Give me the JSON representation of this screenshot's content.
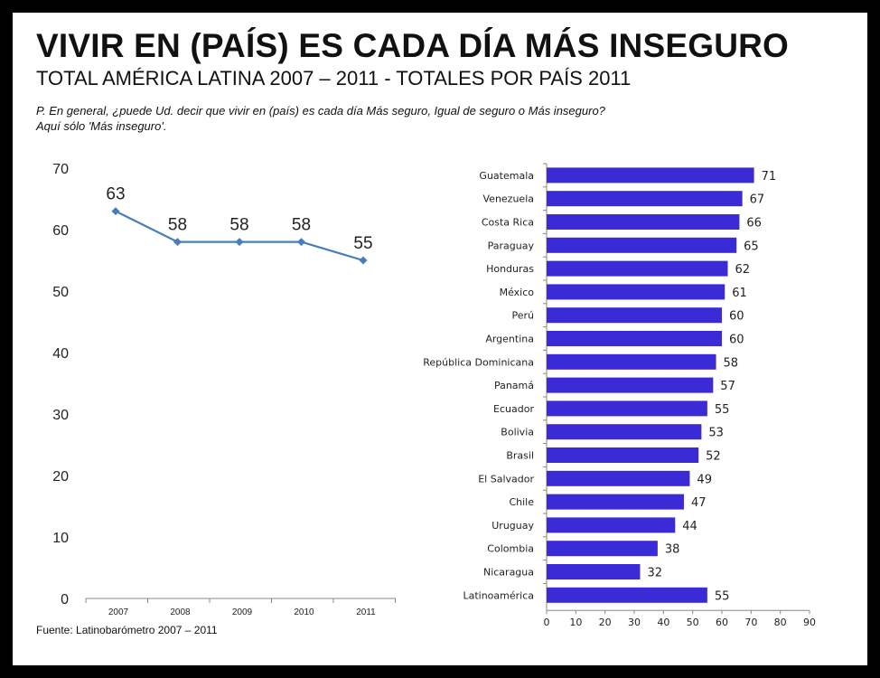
{
  "header": {
    "title": "VIVIR EN (PAÍS) ES CADA DÍA MÁS INSEGURO",
    "subtitle": "TOTAL AMÉRICA LATINA 2007 – 2011 - TOTALES POR PAÍS 2011",
    "question_line1": "P. En general, ¿puede Ud. decir que vivir en (país) es  cada día Más seguro, Igual de seguro o Más inseguro?",
    "question_line2": "Aquí sólo 'Más inseguro'."
  },
  "footer": {
    "source": "Fuente: Latinobarómetro 2007 – 2011"
  },
  "colors": {
    "line": "#4a7ebb",
    "bar": "#3a2bd6",
    "axis": "#888888"
  },
  "chart_data": [
    {
      "type": "line",
      "x": [
        "2007",
        "2008",
        "2009",
        "2010",
        "2011"
      ],
      "values": [
        63,
        58,
        58,
        58,
        55
      ],
      "ylim": [
        0,
        70
      ],
      "yticks": [
        0,
        10,
        20,
        30,
        40,
        50,
        60,
        70
      ],
      "data_labels": true,
      "grid": false
    },
    {
      "type": "bar",
      "orientation": "horizontal",
      "categories": [
        "Guatemala",
        "Venezuela",
        "Costa Rica",
        "Paraguay",
        "Honduras",
        "México",
        "Perú",
        "Argentina",
        "República Dominicana",
        "Panamá",
        "Ecuador",
        "Bolivia",
        "Brasil",
        "El Salvador",
        "Chile",
        "Uruguay",
        "Colombia",
        "Nicaragua",
        "Latinoamérica"
      ],
      "values": [
        71,
        67,
        66,
        65,
        62,
        61,
        60,
        60,
        58,
        57,
        55,
        53,
        52,
        49,
        47,
        44,
        38,
        32,
        55
      ],
      "xlim": [
        0,
        90
      ],
      "xticks": [
        0,
        10,
        20,
        30,
        40,
        50,
        60,
        70,
        80,
        90
      ],
      "data_labels": true,
      "grid": false
    }
  ]
}
